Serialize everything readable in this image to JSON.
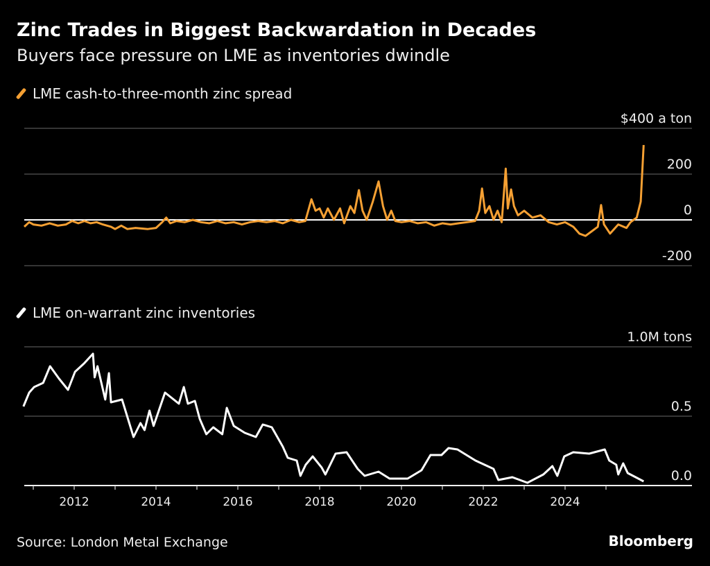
{
  "title": "Zinc Trades in Biggest Backwardation in Decades",
  "subtitle": "Buyers face pressure on LME as inventories dwindle",
  "source": "Source: London Metal Exchange",
  "brand": "Bloomberg",
  "colors": {
    "spread": "#f5a033",
    "inventories": "#ffffff",
    "background": "#000000",
    "grid": "#555555"
  },
  "chart_data": [
    {
      "type": "line",
      "series": [
        {
          "name": "LME cash-to-three-month zinc spread",
          "color": "#f5a033",
          "x": [
            2010.78,
            2010.9,
            2011.0,
            2011.2,
            2011.4,
            2011.6,
            2011.8,
            2011.95,
            2012.1,
            2012.25,
            2012.4,
            2012.55,
            2012.7,
            2012.9,
            2013.0,
            2013.15,
            2013.3,
            2013.5,
            2013.8,
            2014.0,
            2014.15,
            2014.25,
            2014.35,
            2014.5,
            2014.7,
            2014.9,
            2015.1,
            2015.3,
            2015.5,
            2015.7,
            2015.9,
            2016.1,
            2016.3,
            2016.5,
            2016.7,
            2016.9,
            2017.1,
            2017.3,
            2017.5,
            2017.65,
            2017.8,
            2017.9,
            2018.0,
            2018.1,
            2018.2,
            2018.35,
            2018.5,
            2018.6,
            2018.75,
            2018.85,
            2018.96,
            2019.05,
            2019.15,
            2019.3,
            2019.44,
            2019.55,
            2019.65,
            2019.75,
            2019.85,
            2020.0,
            2020.2,
            2020.4,
            2020.6,
            2020.8,
            2021.0,
            2021.2,
            2021.4,
            2021.6,
            2021.8,
            2021.9,
            2021.97,
            2022.05,
            2022.15,
            2022.25,
            2022.35,
            2022.45,
            2022.55,
            2022.6,
            2022.68,
            2022.75,
            2022.85,
            2023.0,
            2023.2,
            2023.4,
            2023.6,
            2023.8,
            2024.0,
            2024.2,
            2024.35,
            2024.5,
            2024.65,
            2024.8,
            2024.88,
            2024.95,
            2025.1,
            2025.3,
            2025.5,
            2025.6,
            2025.75,
            2025.85,
            2025.92
          ],
          "y": [
            -30,
            -10,
            -20,
            -25,
            -15,
            -25,
            -20,
            -5,
            -15,
            -5,
            -15,
            -10,
            -20,
            -30,
            -40,
            -25,
            -40,
            -35,
            -40,
            -35,
            -10,
            10,
            -15,
            -5,
            -10,
            0,
            -10,
            -15,
            -5,
            -15,
            -10,
            -20,
            -10,
            -5,
            -10,
            -5,
            -15,
            0,
            -10,
            -5,
            90,
            40,
            50,
            10,
            50,
            0,
            50,
            -15,
            60,
            30,
            130,
            40,
            0,
            80,
            168,
            60,
            0,
            40,
            -5,
            -10,
            -5,
            -15,
            -10,
            -25,
            -15,
            -20,
            -15,
            -10,
            -5,
            40,
            137,
            30,
            60,
            0,
            40,
            -10,
            224,
            50,
            133,
            60,
            20,
            40,
            10,
            20,
            -10,
            -20,
            -10,
            -30,
            -60,
            -70,
            -50,
            -30,
            65,
            -20,
            -60,
            -20,
            -35,
            -10,
            10,
            80,
            327
          ]
        }
      ],
      "yticks": [
        "$400 a ton",
        "200",
        "0",
        "-200"
      ],
      "ytick_values": [
        400,
        200,
        0,
        -200
      ],
      "ylim": [
        -200,
        400
      ],
      "grid": true
    },
    {
      "type": "line",
      "series": [
        {
          "name": "LME on-warrant zinc inventories",
          "color": "#ffffff",
          "x": [
            2010.76,
            2010.9,
            2011.02,
            2011.24,
            2011.41,
            2011.63,
            2011.85,
            2012.02,
            2012.24,
            2012.46,
            2012.5,
            2012.57,
            2012.76,
            2012.85,
            2012.9,
            2013.17,
            2013.45,
            2013.62,
            2013.72,
            2013.84,
            2013.94,
            2014.22,
            2014.56,
            2014.68,
            2014.78,
            2014.95,
            2015.07,
            2015.23,
            2015.4,
            2015.62,
            2015.73,
            2015.9,
            2016.17,
            2016.44,
            2016.61,
            2016.83,
            2017.1,
            2017.22,
            2017.44,
            2017.53,
            2017.66,
            2017.83,
            2018.05,
            2018.14,
            2018.39,
            2018.66,
            2018.93,
            2019.1,
            2019.44,
            2019.71,
            2020.15,
            2020.49,
            2020.71,
            2020.98,
            2021.15,
            2021.37,
            2021.81,
            2022.25,
            2022.37,
            2022.71,
            2023.08,
            2023.47,
            2023.69,
            2023.81,
            2023.98,
            2024.2,
            2024.59,
            2024.97,
            2025.08,
            2025.25,
            2025.3,
            2025.42,
            2025.53,
            2025.92
          ],
          "y": [
            0.57,
            0.67,
            0.71,
            0.74,
            0.86,
            0.77,
            0.69,
            0.82,
            0.88,
            0.95,
            0.78,
            0.86,
            0.62,
            0.81,
            0.6,
            0.62,
            0.35,
            0.45,
            0.4,
            0.54,
            0.43,
            0.67,
            0.59,
            0.71,
            0.59,
            0.61,
            0.48,
            0.37,
            0.42,
            0.37,
            0.56,
            0.43,
            0.38,
            0.35,
            0.44,
            0.42,
            0.28,
            0.2,
            0.18,
            0.07,
            0.15,
            0.21,
            0.13,
            0.08,
            0.23,
            0.24,
            0.12,
            0.07,
            0.1,
            0.05,
            0.05,
            0.11,
            0.22,
            0.22,
            0.27,
            0.26,
            0.18,
            0.12,
            0.04,
            0.06,
            0.02,
            0.08,
            0.14,
            0.07,
            0.21,
            0.24,
            0.23,
            0.26,
            0.18,
            0.15,
            0.08,
            0.16,
            0.09,
            0.03
          ]
        }
      ],
      "yticks": [
        "1.0M tons",
        "0.5",
        "0.0"
      ],
      "ytick_values": [
        1.0,
        0.5,
        0.0
      ],
      "ylim": [
        0,
        1.0
      ],
      "grid": true
    }
  ],
  "xaxis": {
    "ticks": [
      "2012",
      "2014",
      "2016",
      "2018",
      "2020",
      "2022",
      "2024"
    ],
    "tick_values": [
      2012,
      2014,
      2016,
      2018,
      2020,
      2022,
      2024
    ],
    "xlim": [
      2010.7,
      2026.5
    ]
  }
}
